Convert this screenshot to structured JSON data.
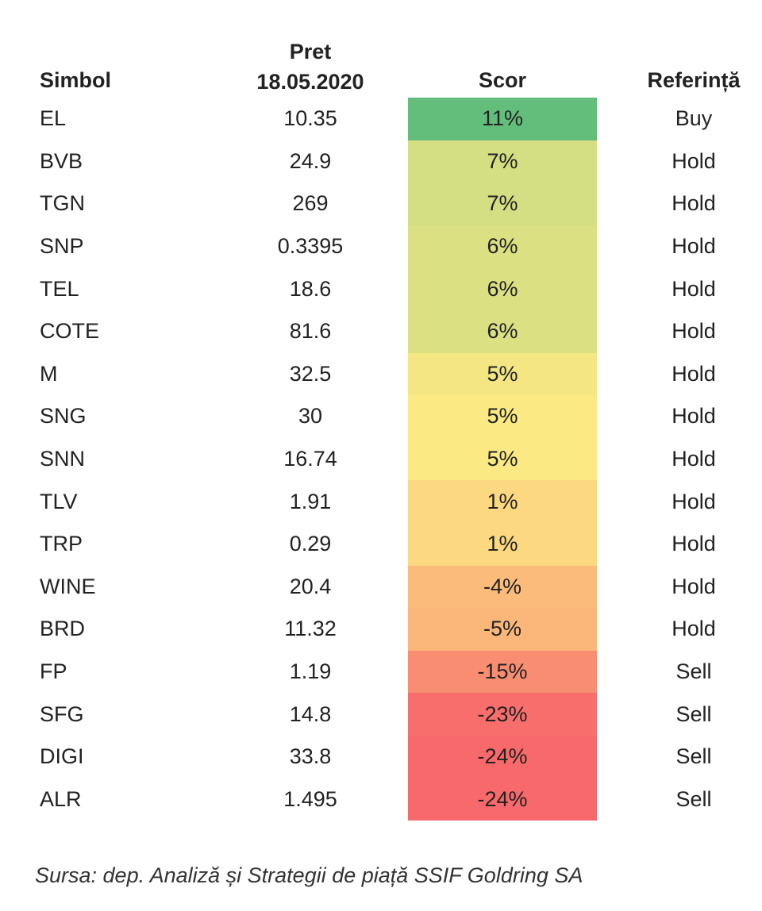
{
  "headers": {
    "symbol": "Simbol",
    "price_line1": "Pret",
    "price_line2": "18.05.2020",
    "score": "Scor",
    "reference": "Referință"
  },
  "rows": [
    {
      "symbol": "EL",
      "price": "10.35",
      "score": "11%",
      "reference": "Buy",
      "score_color": "#63be7b"
    },
    {
      "symbol": "BVB",
      "price": "24.9",
      "score": "7%",
      "reference": "Hold",
      "score_color": "#d3df82"
    },
    {
      "symbol": "TGN",
      "price": "269",
      "score": "7%",
      "reference": "Hold",
      "score_color": "#d3df82"
    },
    {
      "symbol": "SNP",
      "price": "0.3395",
      "score": "6%",
      "reference": "Hold",
      "score_color": "#dbe182"
    },
    {
      "symbol": "TEL",
      "price": "18.6",
      "score": "6%",
      "reference": "Hold",
      "score_color": "#dbe182"
    },
    {
      "symbol": "COTE",
      "price": "81.6",
      "score": "6%",
      "reference": "Hold",
      "score_color": "#dbe182"
    },
    {
      "symbol": "M",
      "price": "32.5",
      "score": "5%",
      "reference": "Hold",
      "score_color": "#f4e783"
    },
    {
      "symbol": "SNG",
      "price": "30",
      "score": "5%",
      "reference": "Hold",
      "score_color": "#fbe983"
    },
    {
      "symbol": "SNN",
      "price": "16.74",
      "score": "5%",
      "reference": "Hold",
      "score_color": "#fbe983"
    },
    {
      "symbol": "TLV",
      "price": "1.91",
      "score": "1%",
      "reference": "Hold",
      "score_color": "#fcd880"
    },
    {
      "symbol": "TRP",
      "price": "0.29",
      "score": "1%",
      "reference": "Hold",
      "score_color": "#fcd880"
    },
    {
      "symbol": "WINE",
      "price": "20.4",
      "score": "-4%",
      "reference": "Hold",
      "score_color": "#fbbc7b"
    },
    {
      "symbol": "BRD",
      "price": "11.32",
      "score": "-5%",
      "reference": "Hold",
      "score_color": "#fbb77a"
    },
    {
      "symbol": "FP",
      "price": "1.19",
      "score": "-15%",
      "reference": "Sell",
      "score_color": "#f98d72"
    },
    {
      "symbol": "SFG",
      "price": "14.8",
      "score": "-23%",
      "reference": "Sell",
      "score_color": "#f86e6c"
    },
    {
      "symbol": "DIGI",
      "price": "33.8",
      "score": "-24%",
      "reference": "Sell",
      "score_color": "#f8696b"
    },
    {
      "symbol": "ALR",
      "price": "1.495",
      "score": "-24%",
      "reference": "Sell",
      "score_color": "#f8696b"
    }
  ],
  "footer": {
    "source": "Sursa: dep. Analiză și Strategii de piață SSIF Goldring SA"
  }
}
